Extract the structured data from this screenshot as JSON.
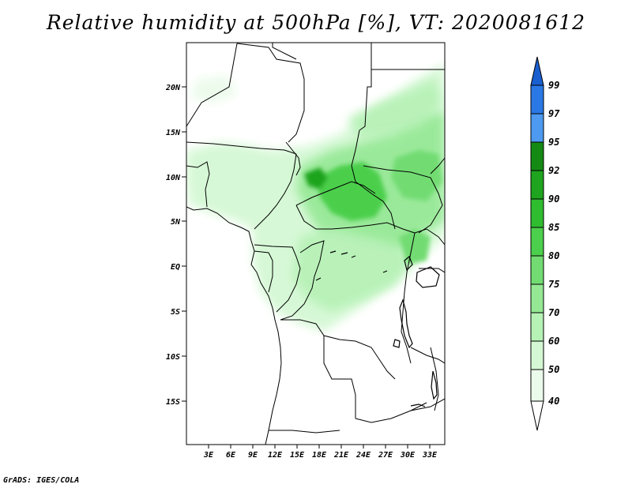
{
  "title": "Relative humidity at 500hPa [%], VT: 2020081612",
  "credit": "GrADS: IGES/COLA",
  "map": {
    "lat_labels": [
      "20N",
      "15N",
      "10N",
      "5N",
      "EQ",
      "5S",
      "10S",
      "15S"
    ],
    "lon_labels": [
      "3E",
      "6E",
      "9E",
      "12E",
      "15E",
      "18E",
      "21E",
      "24E",
      "27E",
      "30E",
      "33E"
    ]
  },
  "colorbar": {
    "labels": [
      "99",
      "97",
      "95",
      "92",
      "90",
      "85",
      "80",
      "75",
      "70",
      "60",
      "50",
      "40"
    ],
    "colors": [
      "#1a5fd0",
      "#2a78e6",
      "#4d9af0",
      "#148a14",
      "#1ea41e",
      "#2fbd2f",
      "#4ccf4c",
      "#72dc72",
      "#94e894",
      "#b6f1b6",
      "#d4f8d4",
      "#ebfbeb"
    ]
  }
}
